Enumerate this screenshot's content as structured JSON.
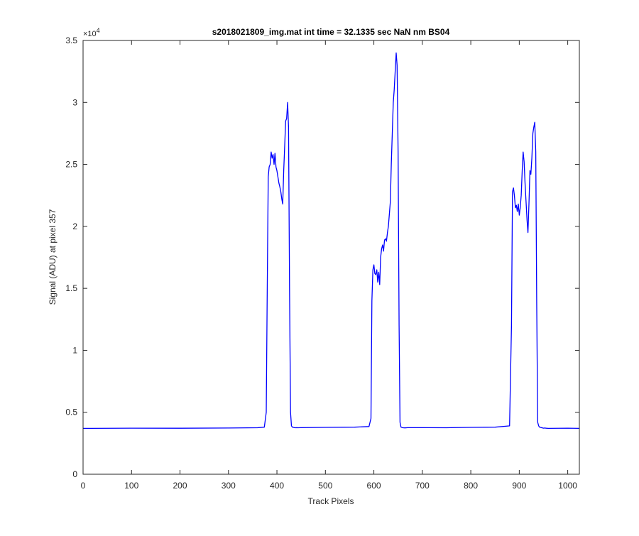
{
  "chart_data": {
    "type": "line",
    "title": "s2018021809_img.mat int time = 32.1335 sec  NaN nm BS04",
    "xlabel": "Track Pixels",
    "ylabel": "Signal (ADU) at pixel 357",
    "xlim": [
      0,
      1024
    ],
    "ylim": [
      0,
      35000
    ],
    "y_exponent_label": "×10",
    "y_exponent_power": "4",
    "xticks": [
      0,
      100,
      200,
      300,
      400,
      500,
      600,
      700,
      800,
      900,
      1000
    ],
    "yticks": [
      0,
      5000,
      10000,
      15000,
      20000,
      25000,
      30000,
      35000
    ],
    "xtick_labels": [
      "0",
      "100",
      "200",
      "300",
      "400",
      "500",
      "600",
      "700",
      "800",
      "900",
      "1000"
    ],
    "ytick_labels": [
      "0",
      "0.5",
      "1",
      "1.5",
      "2",
      "2.5",
      "3",
      "3.5"
    ],
    "grid": false,
    "box": true,
    "series": [
      {
        "color": "#0000ff",
        "x": [
          0,
          100,
          200,
          300,
          360,
          374,
          378,
          380,
          382,
          384,
          386,
          388,
          390,
          392,
          394,
          396,
          398,
          400,
          402,
          404,
          406,
          408,
          410,
          412,
          414,
          416,
          418,
          420,
          422,
          424,
          426,
          428,
          430,
          432,
          434,
          436,
          438,
          440,
          444,
          450,
          500,
          560,
          590,
          594,
          596,
          598,
          600,
          602,
          604,
          606,
          608,
          610,
          612,
          614,
          616,
          618,
          620,
          622,
          624,
          626,
          628,
          630,
          632,
          634,
          636,
          638,
          640,
          642,
          644,
          646,
          648,
          650,
          652,
          654,
          656,
          658,
          660,
          664,
          670,
          700,
          750,
          800,
          850,
          880,
          884,
          886,
          888,
          890,
          892,
          894,
          896,
          898,
          900,
          902,
          904,
          906,
          908,
          910,
          912,
          914,
          916,
          918,
          920,
          922,
          924,
          926,
          928,
          930,
          932,
          934,
          936,
          938,
          940,
          942,
          944,
          946,
          948,
          950,
          952,
          956,
          960,
          1000,
          1024
        ],
        "y": [
          3700,
          3720,
          3710,
          3730,
          3750,
          3800,
          5000,
          15000,
          24000,
          24800,
          25000,
          26000,
          25500,
          25800,
          25000,
          25900,
          24800,
          24500,
          24000,
          23500,
          23200,
          22800,
          22200,
          21800,
          24500,
          26500,
          28500,
          28700,
          30000,
          28000,
          15000,
          5000,
          3900,
          3800,
          3780,
          3760,
          3750,
          3760,
          3750,
          3760,
          3780,
          3800,
          3850,
          4500,
          14000,
          16500,
          16900,
          16200,
          16100,
          16500,
          15500,
          16300,
          15300,
          17500,
          18200,
          18500,
          18000,
          18900,
          19000,
          18800,
          19500,
          20000,
          21000,
          22000,
          25000,
          27500,
          30000,
          31000,
          32500,
          34000,
          33000,
          26000,
          12000,
          4200,
          3800,
          3770,
          3750,
          3740,
          3760,
          3760,
          3750,
          3780,
          3800,
          3900,
          12000,
          22800,
          23100,
          22500,
          21500,
          21700,
          21200,
          21800,
          20900,
          21500,
          22500,
          24500,
          26000,
          25200,
          23500,
          22000,
          20500,
          19500,
          21800,
          24500,
          24200,
          25500,
          27500,
          28000,
          28400,
          26000,
          14000,
          4200,
          3900,
          3800,
          3780,
          3750,
          3740,
          3720,
          3730,
          3710,
          3700,
          3720,
          3700
        ]
      }
    ]
  }
}
